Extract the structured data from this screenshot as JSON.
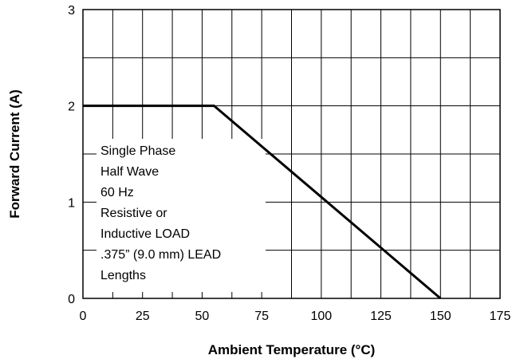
{
  "chart_data": {
    "type": "line",
    "title": "",
    "xlabel": "Ambient Temperature (°C)",
    "ylabel": "Forward Current (A)",
    "xlim": [
      0,
      175
    ],
    "ylim": [
      0,
      3
    ],
    "x_ticks": [
      0,
      25,
      50,
      75,
      100,
      125,
      150,
      175
    ],
    "y_ticks": [
      0,
      1,
      2,
      3
    ],
    "x_tick_labels": [
      "0",
      "25",
      "50",
      "75",
      "100",
      "125",
      "150",
      "175"
    ],
    "y_tick_labels": [
      "0",
      "1",
      "2",
      "3"
    ],
    "grid": true,
    "x_grid_step": 12.5,
    "y_grid_step": 0.5,
    "series": [
      {
        "x": [
          0,
          55,
          150
        ],
        "y": [
          2,
          2,
          0
        ]
      }
    ],
    "annotation_lines": [
      "Single Phase",
      "Half Wave",
      "60 Hz",
      "Resistive or",
      "Inductive LOAD",
      ".375” (9.0 mm) LEAD",
      "Lengths"
    ],
    "colors": {
      "line": "#000000",
      "grid": "#000000",
      "background": "#ffffff"
    }
  }
}
